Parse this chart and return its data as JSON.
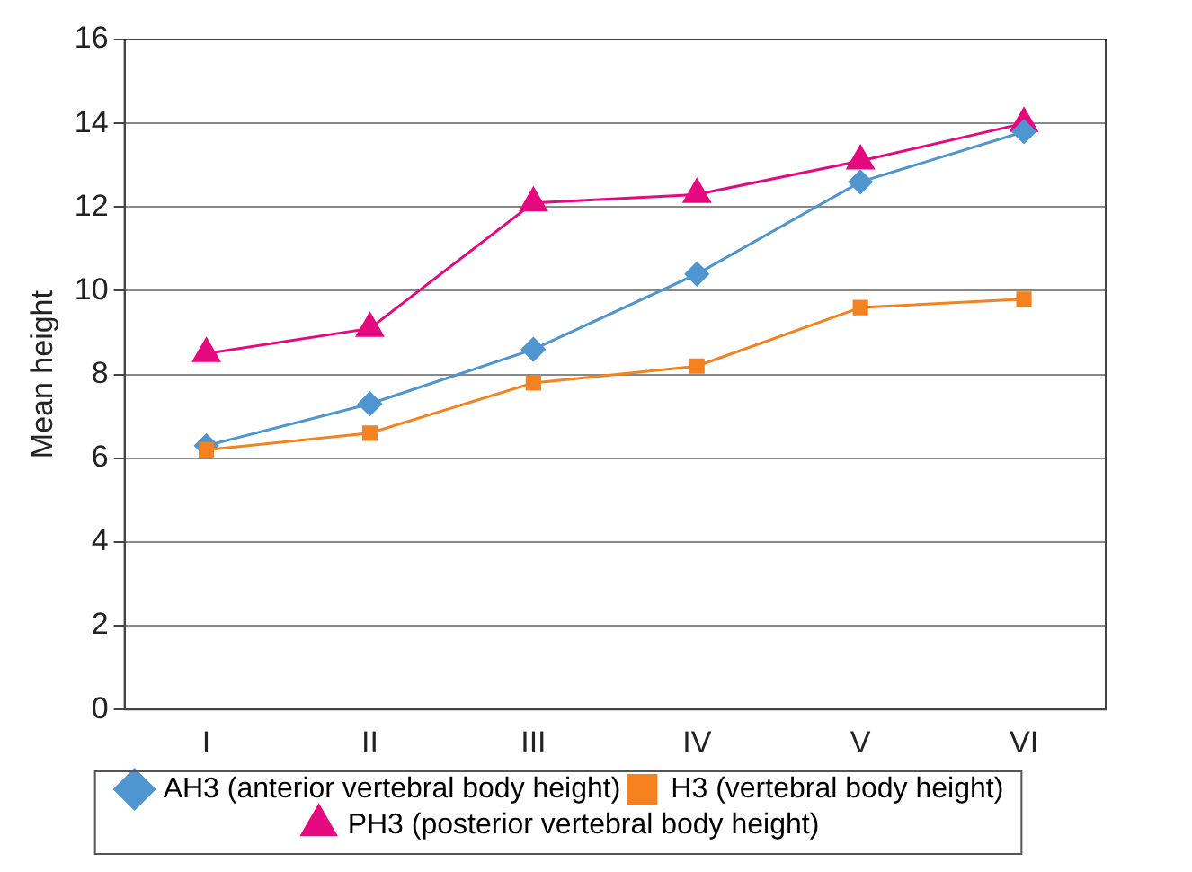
{
  "chart_data": {
    "type": "line",
    "ylabel": "Mean height",
    "categories": [
      "I",
      "II",
      "III",
      "IV",
      "V",
      "VI"
    ],
    "series": [
      {
        "name": "AH3 (anterior vertebral body height)",
        "color": "#4f95d0",
        "marker": "diamond",
        "values": [
          6.3,
          7.3,
          8.6,
          10.4,
          12.6,
          13.8
        ]
      },
      {
        "name": "H3 (vertebral body height)",
        "color": "#f5821f",
        "marker": "square",
        "values": [
          6.2,
          6.6,
          7.8,
          8.2,
          9.6,
          9.8
        ]
      },
      {
        "name": "PH3 (posterior vertebral body height)",
        "color": "#e5097f",
        "marker": "triangle",
        "values": [
          8.5,
          9.1,
          12.1,
          12.3,
          13.1,
          14.0
        ]
      }
    ],
    "ylim": [
      0,
      16
    ],
    "yticks": [
      0,
      2,
      4,
      6,
      8,
      10,
      12,
      14,
      16
    ],
    "grid": "y",
    "legend": "bottom"
  }
}
